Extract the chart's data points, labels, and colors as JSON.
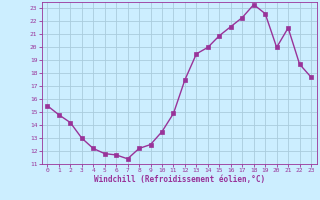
{
  "x": [
    0,
    1,
    2,
    3,
    4,
    5,
    6,
    7,
    8,
    9,
    10,
    11,
    12,
    13,
    14,
    15,
    16,
    17,
    18,
    19,
    20,
    21,
    22,
    23
  ],
  "y": [
    15.5,
    14.8,
    14.2,
    13.0,
    12.2,
    11.8,
    11.7,
    11.4,
    12.2,
    12.5,
    13.5,
    14.9,
    17.5,
    19.5,
    20.0,
    20.9,
    21.6,
    22.3,
    23.3,
    22.6,
    20.0,
    21.5,
    18.7,
    17.7
  ],
  "xlabel": "Windchill (Refroidissement éolien,°C)",
  "bg_color": "#cceeff",
  "grid_color": "#aaccdd",
  "line_color": "#993399",
  "marker_color": "#993399",
  "ylim": [
    11,
    23.5
  ],
  "xlim": [
    -0.5,
    23.5
  ],
  "yticks": [
    11,
    12,
    13,
    14,
    15,
    16,
    17,
    18,
    19,
    20,
    21,
    22,
    23
  ],
  "xticks": [
    0,
    1,
    2,
    3,
    4,
    5,
    6,
    7,
    8,
    9,
    10,
    11,
    12,
    13,
    14,
    15,
    16,
    17,
    18,
    19,
    20,
    21,
    22,
    23
  ],
  "tick_color": "#993399",
  "label_color": "#993399"
}
